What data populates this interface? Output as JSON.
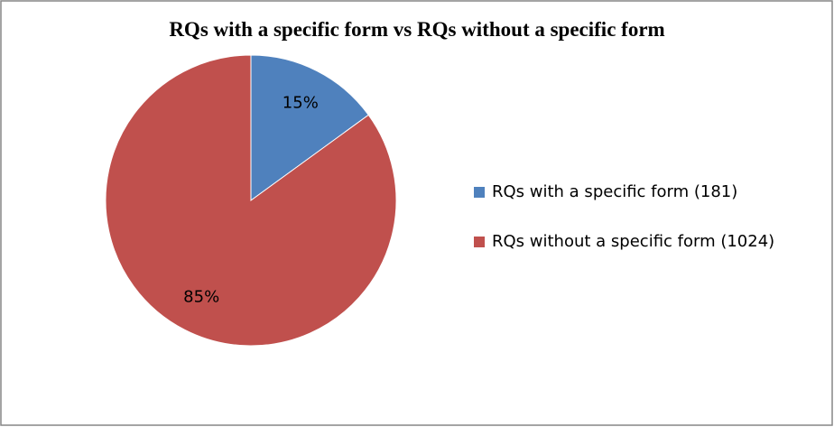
{
  "chart_data": {
    "type": "pie",
    "title": "RQs with a specific form vs RQs without a specific form",
    "categories": [
      "RQs with a specific form (181)",
      "RQs without a specific form (1024)"
    ],
    "values": [
      15,
      85
    ],
    "value_labels": [
      "15%",
      "85%"
    ],
    "colors": [
      "#4f81bd",
      "#c0504d"
    ],
    "legend": "right"
  }
}
